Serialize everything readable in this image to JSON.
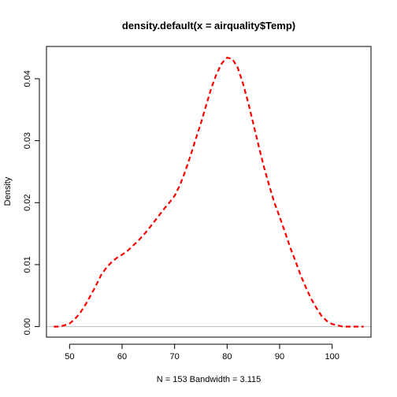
{
  "chart_data": {
    "type": "line",
    "title": "density.default(x = airquality$Temp)",
    "xlabel": "N = 153   Bandwidth = 3.115",
    "ylabel": "Density",
    "xlim": [
      45.6,
      107.4
    ],
    "ylim": [
      -0.0017,
      0.0452
    ],
    "x_ticks": [
      50,
      60,
      70,
      80,
      90,
      100
    ],
    "x_tick_labels": [
      "50",
      "60",
      "70",
      "80",
      "90",
      "100"
    ],
    "y_ticks": [
      0.0,
      0.01,
      0.02,
      0.03,
      0.04
    ],
    "y_tick_labels": [
      "0.00",
      "0.01",
      "0.02",
      "0.03",
      "0.04"
    ],
    "grid": false,
    "baseline_y": 0,
    "colors": {
      "line": "#ff0000",
      "baseline": "#bebebe",
      "axis": "#000000"
    },
    "series": [
      {
        "line_style": "dashed",
        "x": [
          47.0,
          48.0,
          49.0,
          50.0,
          51.0,
          52.0,
          53.0,
          54.0,
          55.0,
          56.0,
          57.0,
          58.0,
          59.0,
          60.0,
          61.0,
          62.0,
          63.0,
          64.0,
          65.0,
          66.0,
          67.0,
          68.0,
          69.0,
          70.0,
          71.0,
          72.0,
          73.0,
          74.0,
          75.0,
          76.0,
          77.0,
          78.0,
          79.0,
          80.0,
          81.0,
          82.0,
          83.0,
          84.0,
          85.0,
          86.0,
          87.0,
          88.0,
          89.0,
          90.0,
          91.0,
          92.0,
          93.0,
          94.0,
          95.0,
          96.0,
          97.0,
          98.0,
          99.0,
          100.0,
          101.0,
          102.0,
          103.0,
          104.0,
          105.0,
          106.0
        ],
        "y": [
          0.0,
          0.0,
          0.0002,
          0.0005,
          0.0012,
          0.0022,
          0.0035,
          0.005,
          0.0066,
          0.0083,
          0.0095,
          0.0104,
          0.0111,
          0.0116,
          0.0122,
          0.013,
          0.0138,
          0.0147,
          0.0157,
          0.0168,
          0.0179,
          0.019,
          0.02,
          0.0211,
          0.0228,
          0.025,
          0.0275,
          0.0302,
          0.0328,
          0.0357,
          0.0385,
          0.0408,
          0.0425,
          0.0434,
          0.0432,
          0.0418,
          0.0393,
          0.0362,
          0.0327,
          0.0292,
          0.0258,
          0.0228,
          0.02,
          0.0177,
          0.0153,
          0.0128,
          0.0106,
          0.0083,
          0.0063,
          0.0045,
          0.003,
          0.0017,
          0.0009,
          0.0004,
          0.0002,
          0.0,
          0.0,
          0.0,
          0.0,
          0.0
        ]
      }
    ]
  }
}
